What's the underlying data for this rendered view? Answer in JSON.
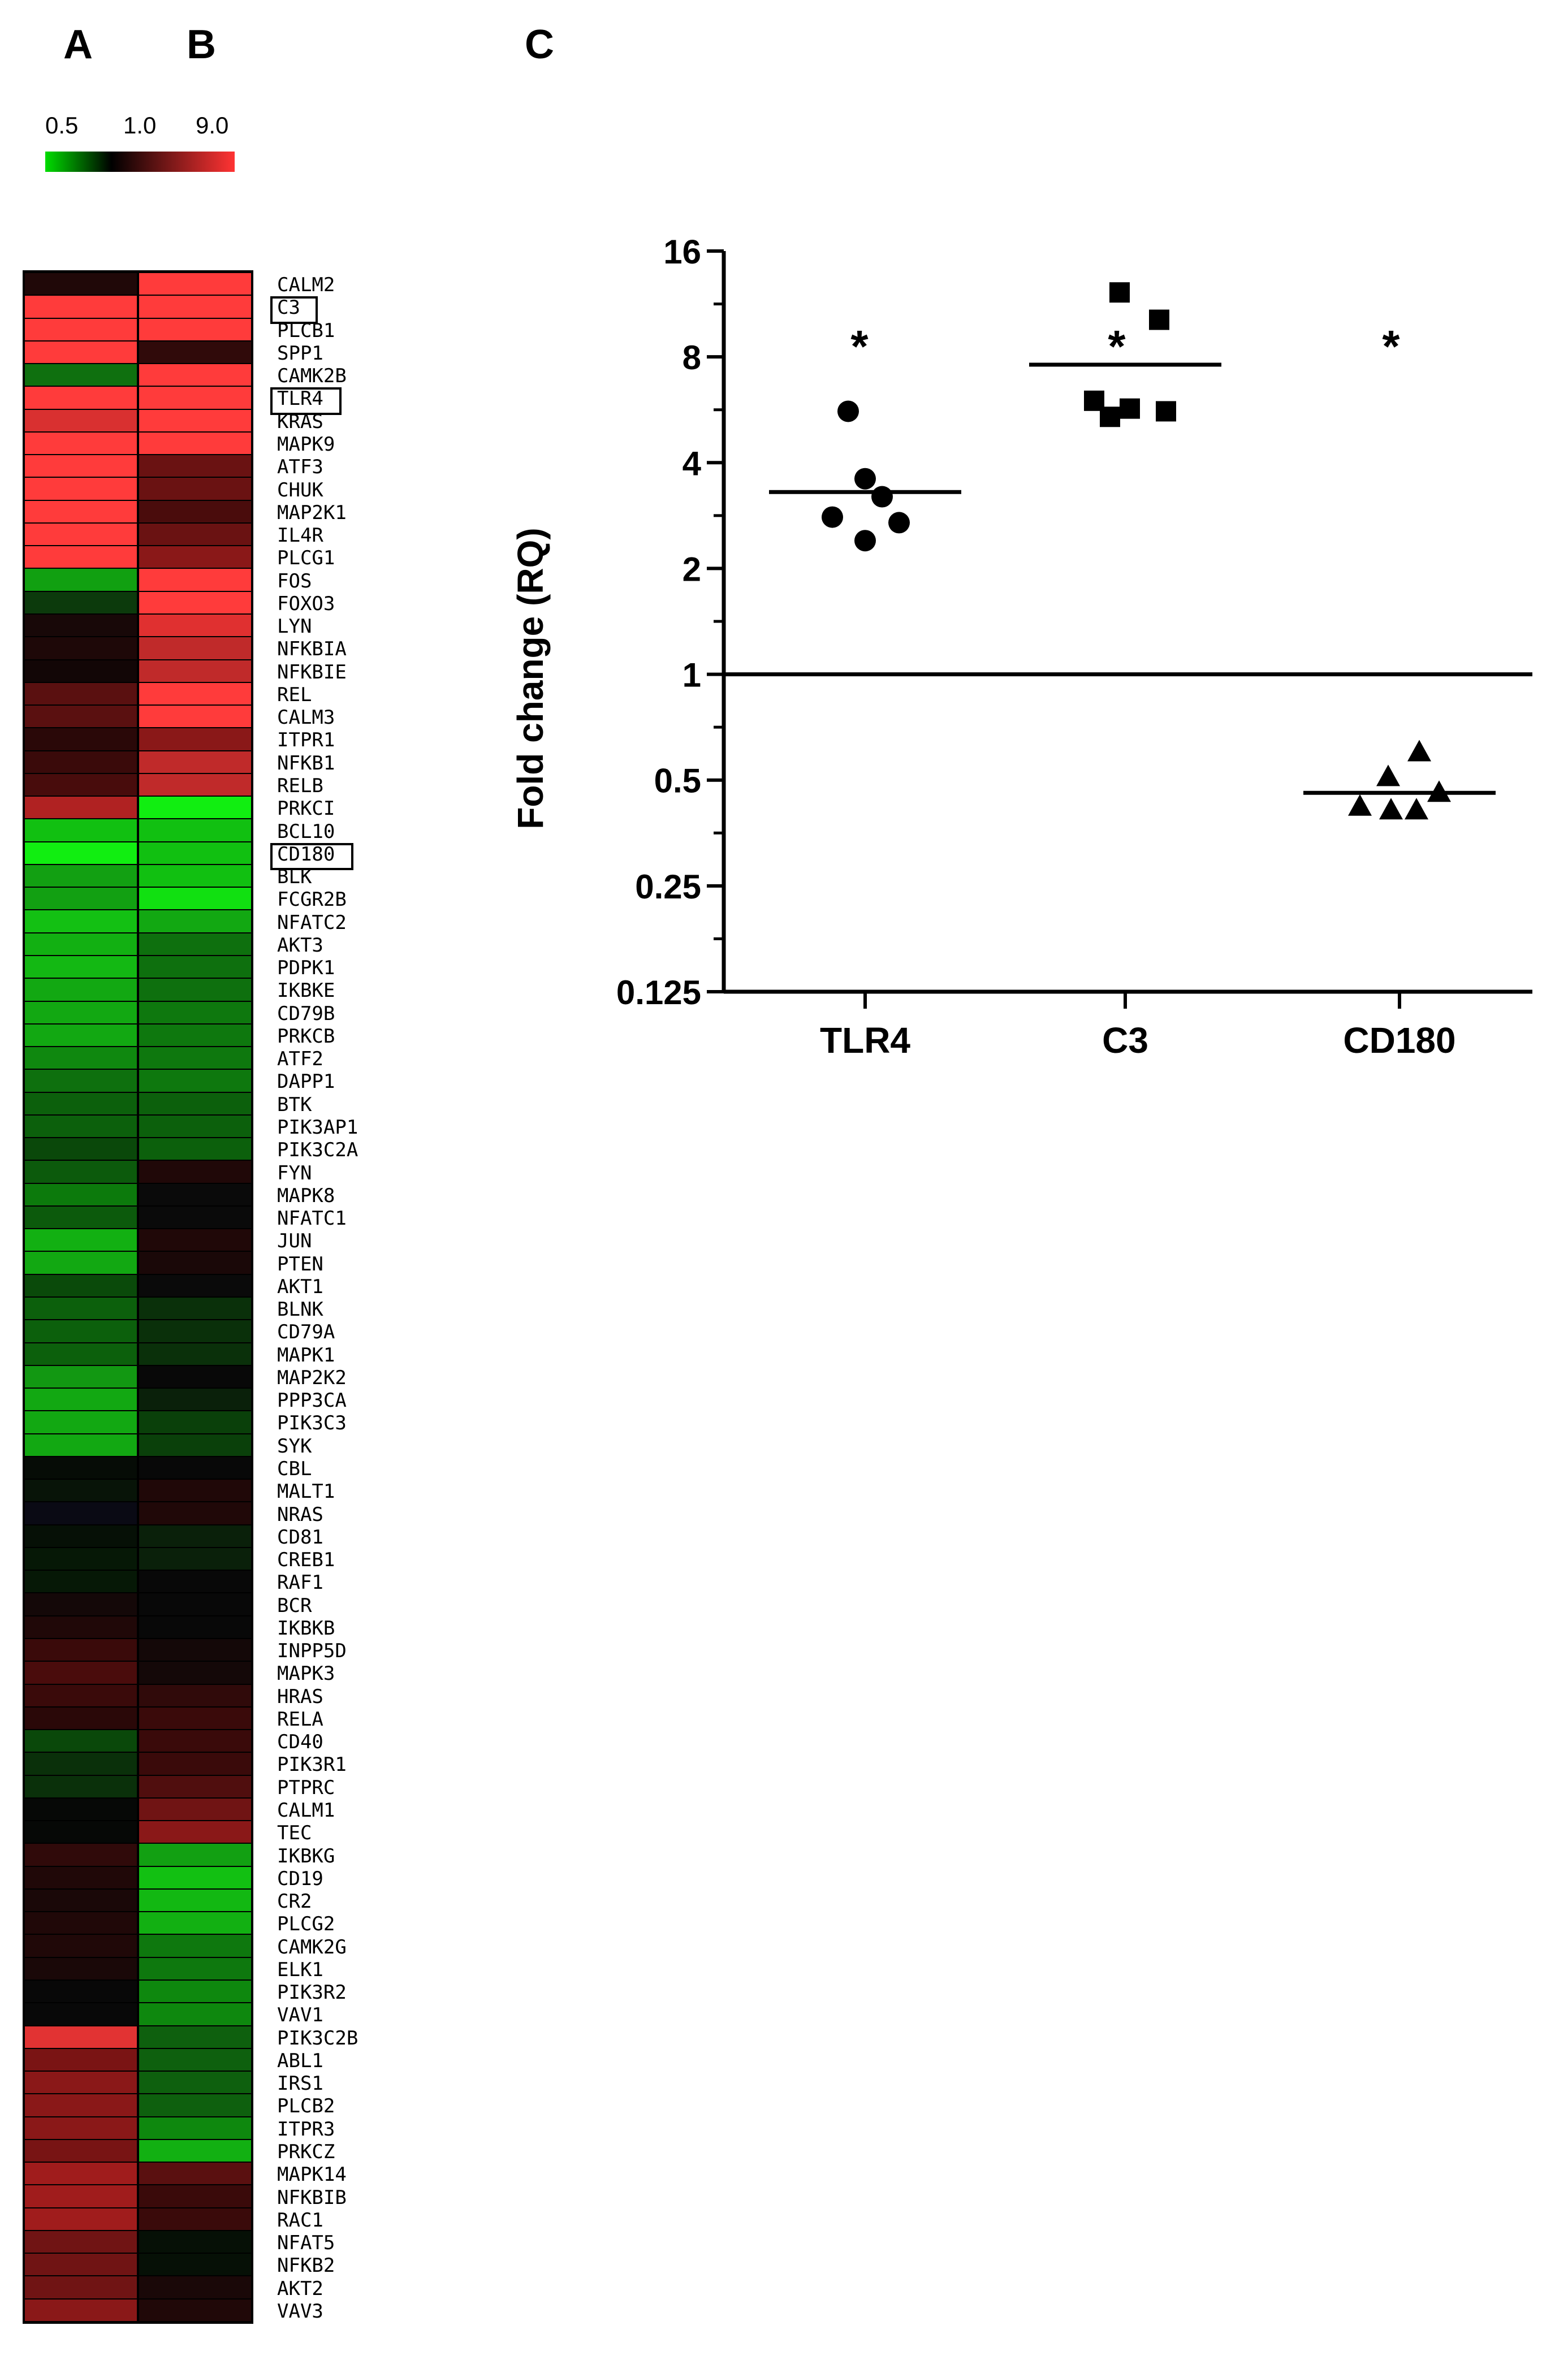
{
  "panels": {
    "a": "A",
    "b": "B",
    "c": "C"
  },
  "colorscale": {
    "labels": [
      "0.5",
      "1.0",
      "9.0"
    ],
    "colors": {
      "low": "#00dd00",
      "mid": "#000000",
      "high": "#ff3333"
    }
  },
  "heatmap": {
    "columns": [
      "A",
      "B"
    ],
    "genes": [
      "CALM2",
      "C3",
      "PLCB1",
      "SPP1",
      "CAMK2B",
      "TLR4",
      "KRAS",
      "MAPK9",
      "ATF3",
      "CHUK",
      "MAP2K1",
      "IL4R",
      "PLCG1",
      "FOS",
      "FOXO3",
      "LYN",
      "NFKBIA",
      "NFKBIE",
      "REL",
      "CALM3",
      "ITPR1",
      "NFKB1",
      "RELB",
      "PRKCI",
      "BCL10",
      "CD180",
      "BLK",
      "FCGR2B",
      "NFATC2",
      "AKT3",
      "PDPK1",
      "IKBKE",
      "CD79B",
      "PRKCB",
      "ATF2",
      "DAPP1",
      "BTK",
      "PIK3AP1",
      "PIK3C2A",
      "FYN",
      "MAPK8",
      "NFATC1",
      "JUN",
      "PTEN",
      "AKT1",
      "BLNK",
      "CD79A",
      "MAPK1",
      "MAP2K2",
      "PPP3CA",
      "PIK3C3",
      "SYK",
      "CBL",
      "MALT1",
      "NRAS",
      "CD81",
      "CREB1",
      "RAF1",
      "BCR",
      "IKBKB",
      "INPP5D",
      "MAPK3",
      "HRAS",
      "RELA",
      "CD40",
      "PIK3R1",
      "PTPRC",
      "CALM1",
      "TEC",
      "IKBKG",
      "CD19",
      "CR2",
      "PLCG2",
      "CAMK2G",
      "ELK1",
      "PIK3R2",
      "VAV1",
      "PIK3C2B",
      "ABL1",
      "IRS1",
      "PLCB2",
      "ITPR3",
      "PRKCZ",
      "MAPK14",
      "NFKBIB",
      "RAC1",
      "NFAT5",
      "NFKB2",
      "AKT2",
      "VAV3"
    ],
    "highlighted": [
      "C3",
      "TLR4",
      "CD180"
    ],
    "colors_a": [
      "#200808",
      "#ff3b3b",
      "#ff3b3b",
      "#ff3b3b",
      "#0f700f",
      "#ff3b3b",
      "#d93030",
      "#ff3b3b",
      "#ff3b3b",
      "#ff3b3b",
      "#ff3b3b",
      "#ff3b3b",
      "#ff3b3b",
      "#11a011",
      "#0c3a0c",
      "#180808",
      "#1e0808",
      "#120606",
      "#5a1010",
      "#5a1010",
      "#2a0808",
      "#3a0a0a",
      "#480c0c",
      "#b02222",
      "#11c011",
      "#11ee11",
      "#12a012",
      "#12a012",
      "#13c013",
      "#12b012",
      "#13b813",
      "#12a812",
      "#12a812",
      "#12a812",
      "#0f880f",
      "#0e700e",
      "#0c600c",
      "#0c600c",
      "#0a480a",
      "#0c5a0c",
      "#0c7a0c",
      "#0c5a0c",
      "#12b012",
      "#12a812",
      "#0a4a0a",
      "#0c600c",
      "#0c600c",
      "#0c600c",
      "#129812",
      "#12a812",
      "#12a812",
      "#12a812",
      "#060c06",
      "#081408",
      "#0a0a14",
      "#061006",
      "#061806",
      "#061806",
      "#140808",
      "#200808",
      "#3a0a0a",
      "#4a0c0c",
      "#3a0a0a",
      "#2a0808",
      "#0a480a",
      "#0a300a",
      "#0a300a",
      "#060806",
      "#060806",
      "#300a0a",
      "#200808",
      "#1a0808",
      "#200808",
      "#200808",
      "#1a0808",
      "#080808",
      "#080808",
      "#e23333",
      "#7a1414",
      "#8a1818",
      "#8a1818",
      "#8a1818",
      "#781414",
      "#a01c1c",
      "#a01c1c",
      "#a01c1c",
      "#701414",
      "#701414",
      "#701414",
      "#8a1818"
    ],
    "colors_b": [
      "#ff3b3b",
      "#ff3b3b",
      "#ff3b3b",
      "#300a0a",
      "#ff3b3b",
      "#ff3b3b",
      "#ff3b3b",
      "#ff3b3b",
      "#6a1212",
      "#6a1212",
      "#4a0c0c",
      "#6a1212",
      "#8a1818",
      "#ff3b3b",
      "#ff3b3b",
      "#e03030",
      "#c02a2a",
      "#c02a2a",
      "#ff3b3b",
      "#ff3b3b",
      "#8a1818",
      "#c02a2a",
      "#c02a2a",
      "#11ee11",
      "#11c011",
      "#11c011",
      "#11c011",
      "#11e011",
      "#12a812",
      "#0e700e",
      "#0e700e",
      "#0e700e",
      "#0e780e",
      "#0e780e",
      "#0e780e",
      "#0e780e",
      "#0c600c",
      "#0c600c",
      "#0c600c",
      "#200808",
      "#0a0a0a",
      "#0a0a0a",
      "#200808",
      "#1a0808",
      "#0a0a0a",
      "#0a300a",
      "#0a300a",
      "#0a300a",
      "#080808",
      "#0a200a",
      "#0a400a",
      "#0a400a",
      "#080808",
      "#200808",
      "#200808",
      "#0a200a",
      "#0a200a",
      "#080808",
      "#080808",
      "#080808",
      "#140808",
      "#140808",
      "#300a0a",
      "#3a0a0a",
      "#3a0a0a",
      "#3a0a0a",
      "#500e0e",
      "#701414",
      "#8a1818",
      "#12a012",
      "#12c012",
      "#12b812",
      "#12b012",
      "#0e780e",
      "#0e780e",
      "#0e880e",
      "#0e880e",
      "#0e600e",
      "#0e600e",
      "#0e600e",
      "#0e600e",
      "#0e880e",
      "#12b012",
      "#5a1010",
      "#3a0a0a",
      "#3a0a0a",
      "#061006",
      "#061006",
      "#1a0808",
      "#200808"
    ]
  },
  "chart_data": {
    "type": "scatter",
    "title": "",
    "xlabel": "",
    "ylabel": "Fold change (RQ)",
    "yscale": "log2",
    "ylim": [
      0.125,
      16
    ],
    "yticks": [
      "0.125",
      "0.25",
      "0.5",
      "1",
      "2",
      "4",
      "8",
      "16"
    ],
    "categories": [
      "TLR4",
      "C3",
      "CD180"
    ],
    "reference_line": 1,
    "significance": [
      "*",
      "*",
      "*"
    ],
    "series": [
      {
        "category": "TLR4",
        "marker": "circle",
        "values": [
          5.6,
          3.6,
          3.2,
          2.8,
          2.7,
          2.4
        ],
        "mean": 3.3
      },
      {
        "category": "C3",
        "marker": "square",
        "values": [
          12.2,
          10.2,
          6.0,
          5.7,
          5.6,
          5.4
        ],
        "mean": 7.6
      },
      {
        "category": "CD180",
        "marker": "triangle",
        "values": [
          0.6,
          0.51,
          0.46,
          0.42,
          0.41,
          0.41
        ],
        "mean": 0.46
      }
    ]
  }
}
